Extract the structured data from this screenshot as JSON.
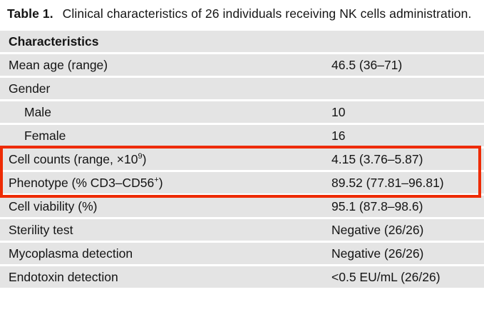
{
  "title": {
    "prefix": "Table 1.",
    "text": "Clinical characteristics of 26 individuals receiving NK cells administration."
  },
  "colors": {
    "row_bg": "#e4e4e4",
    "highlight_border": "#ee2b04",
    "text": "#141414"
  },
  "table": {
    "rows": [
      {
        "label": "Characteristics",
        "value": ""
      },
      {
        "label": "Mean age (range)",
        "value": "46.5 (36–71)"
      },
      {
        "label": "Gender",
        "value": ""
      },
      {
        "label": "Male",
        "value": "10"
      },
      {
        "label": "Female",
        "value": "16"
      },
      {
        "label": "Cell counts (range, ×10",
        "sup": "9",
        "after": ")",
        "value": "4.15 (3.76–5.87)"
      },
      {
        "label": "Phenotype (% CD3–CD56",
        "sup": "+",
        "after": ")",
        "value": "89.52 (77.81–96.81)"
      },
      {
        "label": "Cell viability (%)",
        "value": "95.1 (87.8–98.6)"
      },
      {
        "label": "Sterility test",
        "value": "Negative (26/26)"
      },
      {
        "label": "Mycoplasma detection",
        "value": "Negative (26/26)"
      },
      {
        "label": "Endotoxin detection",
        "value": "<0.5 EU/mL (26/26)"
      }
    ],
    "highlighted_rows": [
      "Cell counts (range, ×10⁹)",
      "Phenotype (% CD3–CD56⁺)"
    ]
  }
}
